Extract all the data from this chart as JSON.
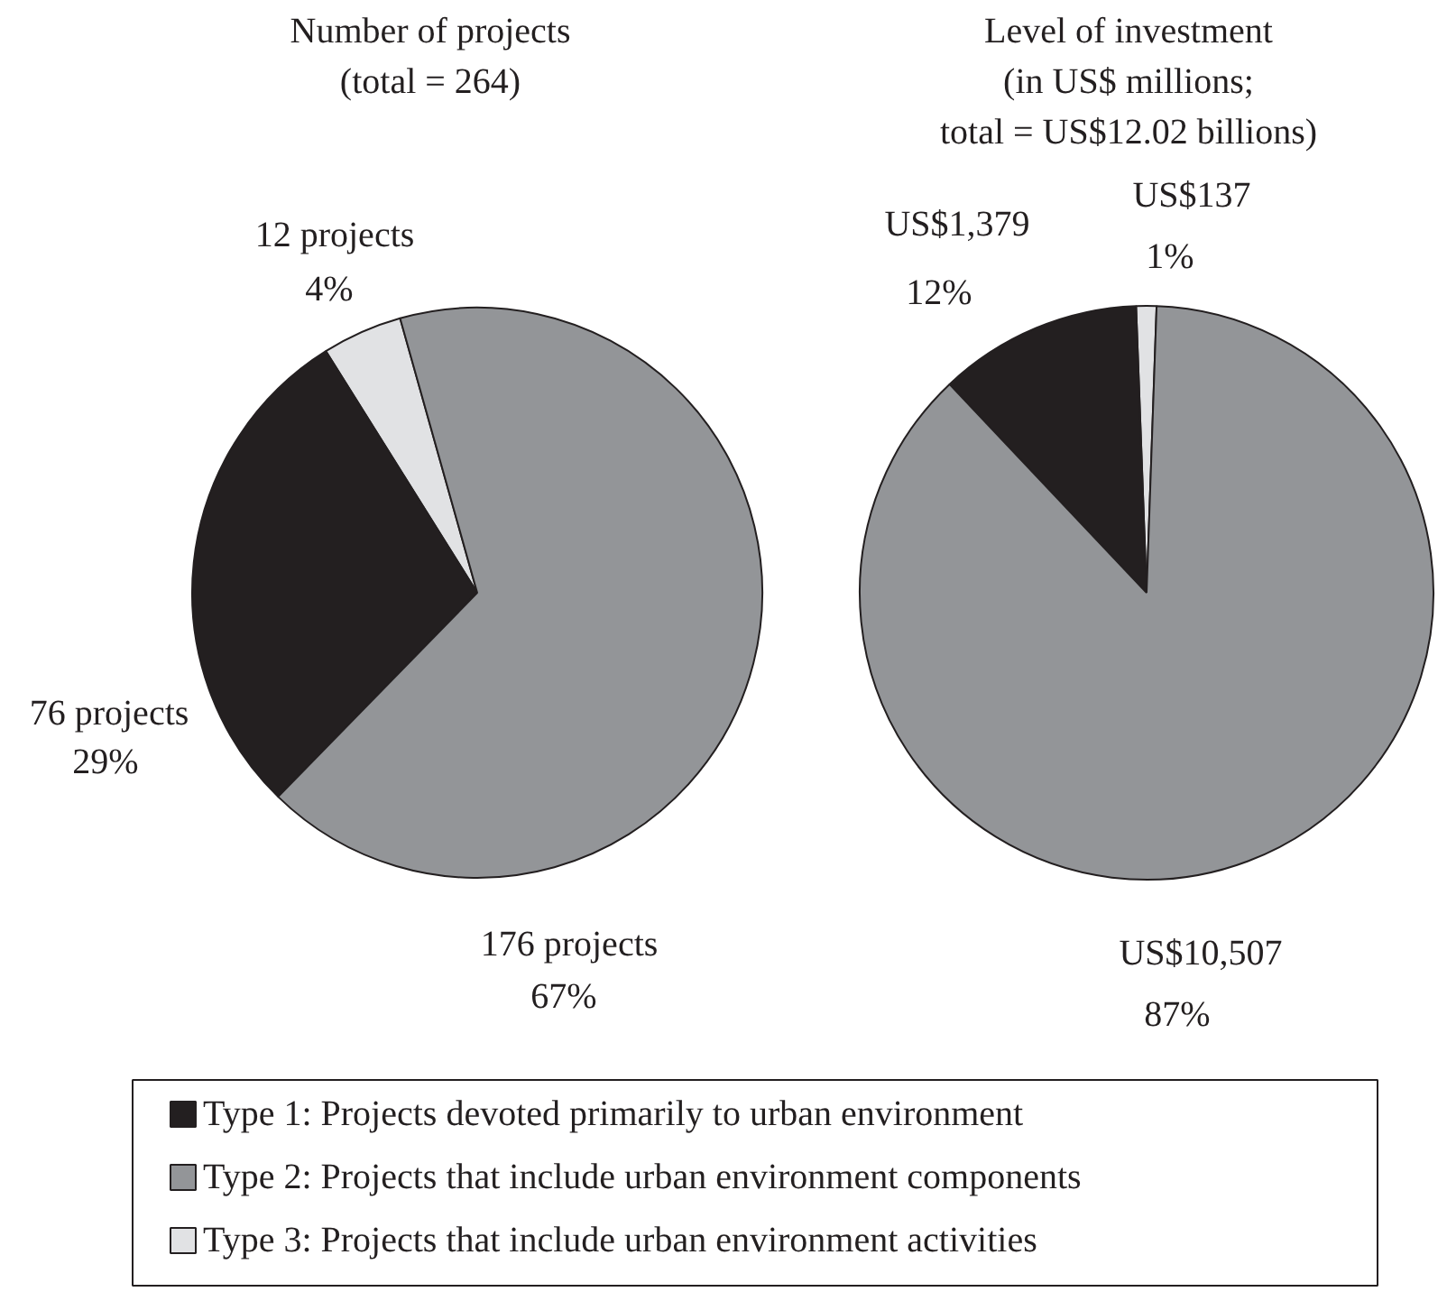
{
  "chart_data": [
    {
      "type": "pie",
      "title": "Number of projects\n(total = 264)",
      "categories": [
        "Type 1: Projects devoted primarily to urban environment",
        "Type 2: Projects that include urban environment components",
        "Type 3: Projects that include urban environment activities"
      ],
      "values": [
        76,
        176,
        12
      ],
      "colors": [
        "#231f20",
        "#939598",
        "#e1e2e4"
      ],
      "value_labels": [
        "76 projects\n29%",
        "176 projects\n67%",
        "12 projects\n4%"
      ],
      "legend": "bottom"
    },
    {
      "type": "pie",
      "title": "Level of investment\n(in US$ millions;\ntotal = US$12.02 billions)",
      "categories": [
        null,
        null,
        null
      ],
      "values": [
        1379,
        10507,
        137
      ],
      "colors": [
        "#231f20",
        "#939598",
        "#e1e2e4"
      ],
      "value_labels": [
        "US$1,379\n12%",
        "US$10,507\n87%",
        "US$137\n1%"
      ]
    }
  ]
}
